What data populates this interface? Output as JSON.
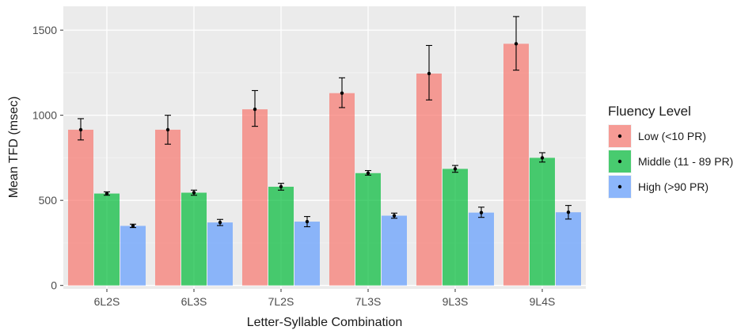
{
  "chart_data": {
    "type": "bar",
    "xlabel": "Letter-Syllable Combination",
    "ylabel": "Mean TFD (msec)",
    "ylim": [
      -20,
      1640
    ],
    "yticks": [
      0,
      500,
      1000,
      1500
    ],
    "grid": true,
    "legend_position": "right",
    "legend_title": "Fluency Level",
    "categories": [
      "6L2S",
      "6L3S",
      "7L2S",
      "7L3S",
      "9L3S",
      "9L4S"
    ],
    "series": [
      {
        "name": "Low (<10 PR)",
        "color": "#F8766D",
        "values": [
          915,
          915,
          1035,
          1130,
          1245,
          1420
        ],
        "error_low": [
          855,
          830,
          935,
          1045,
          1090,
          1265
        ],
        "error_high": [
          980,
          1000,
          1145,
          1220,
          1410,
          1580
        ]
      },
      {
        "name": "Middle (11 - 89 PR)",
        "color": "#00BA38",
        "values": [
          540,
          545,
          580,
          660,
          685,
          750
        ],
        "error_low": [
          530,
          530,
          560,
          648,
          665,
          725
        ],
        "error_high": [
          550,
          560,
          600,
          675,
          705,
          780
        ]
      },
      {
        "name": "High (>90 PR)",
        "color": "#619CFF",
        "values": [
          350,
          370,
          375,
          410,
          428,
          430
        ],
        "error_low": [
          340,
          352,
          345,
          395,
          400,
          390
        ],
        "error_high": [
          360,
          388,
          405,
          425,
          460,
          470
        ]
      }
    ]
  }
}
